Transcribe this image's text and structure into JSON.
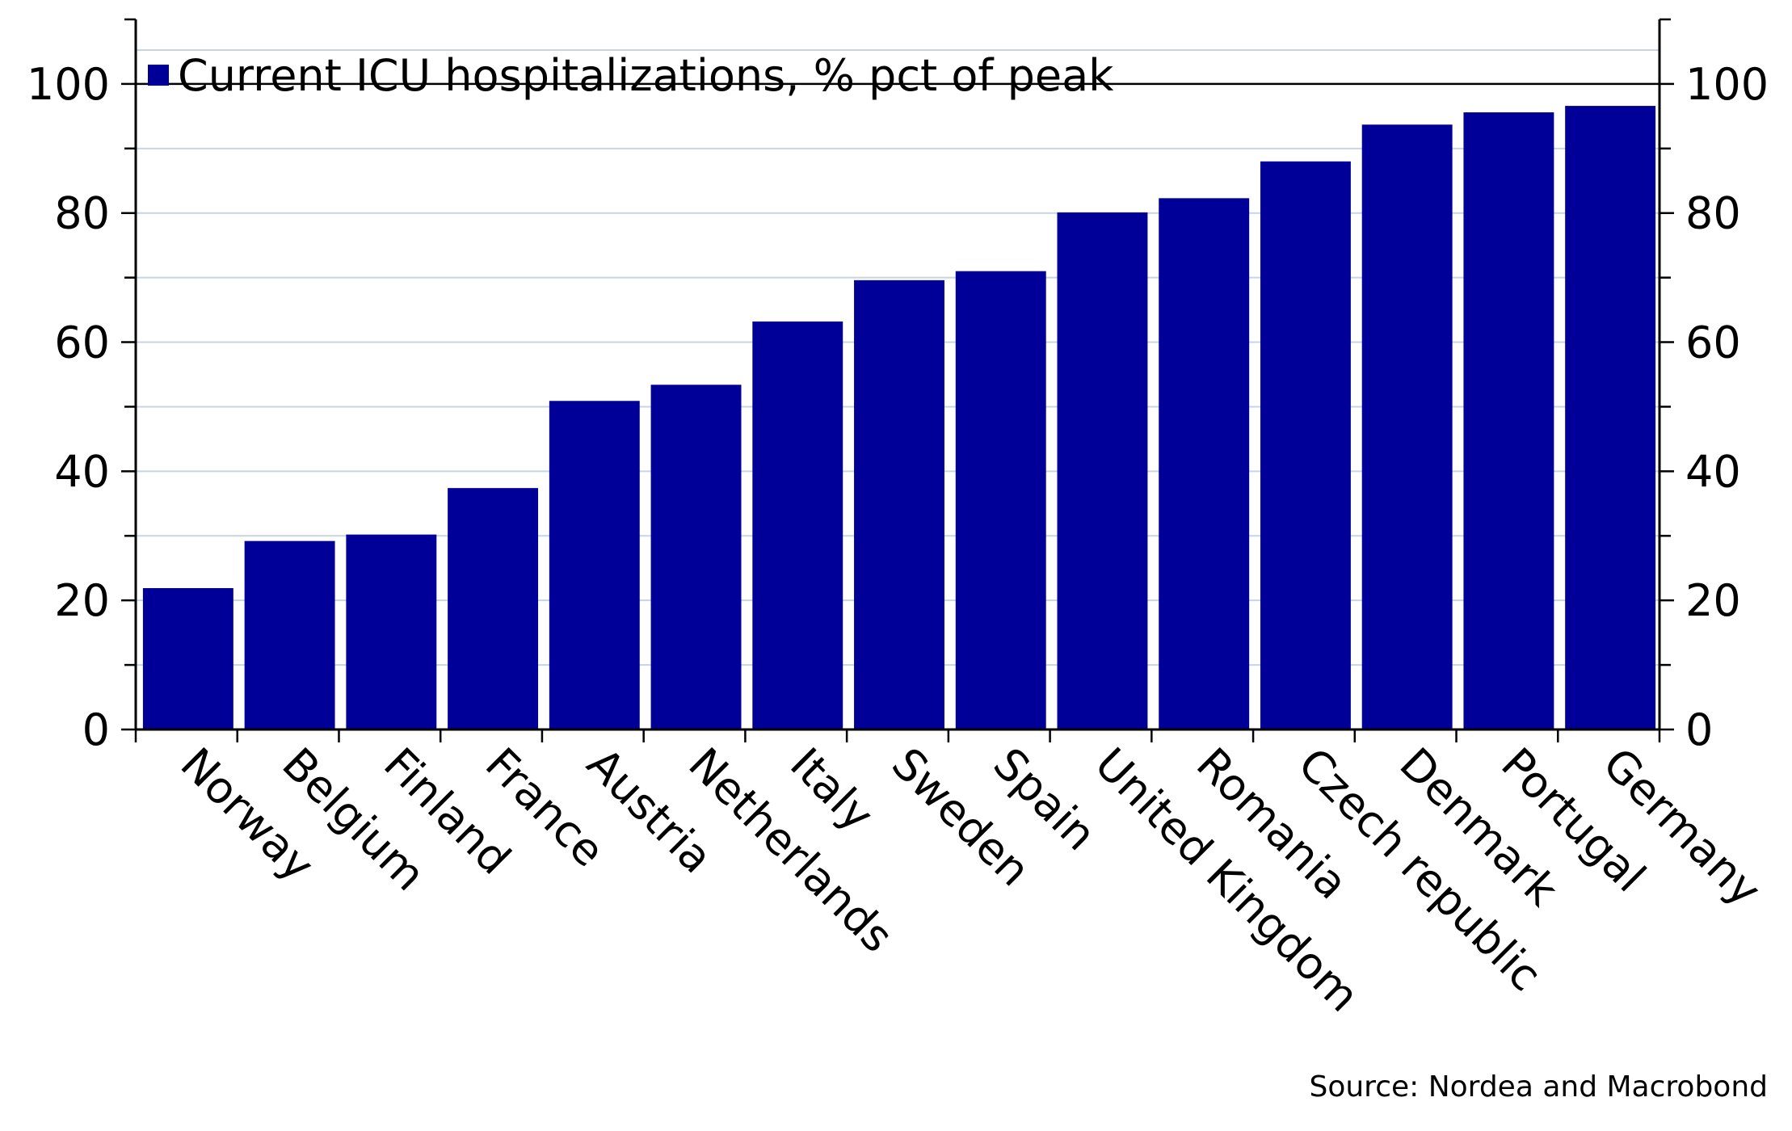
{
  "chart_data": {
    "type": "bar",
    "categories": [
      "Norway",
      "Belgium",
      "Finland",
      "France",
      "Austria",
      "Netherlands",
      "Italy",
      "Sweden",
      "Spain",
      "United Kingdom",
      "Romania",
      "Czech republic",
      "Denmark",
      "Portugal",
      "Germany"
    ],
    "series": [
      {
        "name": "Current ICU hospitalizations, % pct of peak",
        "color": "#000099",
        "values": [
          21.9,
          29.2,
          30.2,
          37.4,
          50.9,
          53.4,
          63.2,
          69.6,
          71.0,
          80.1,
          82.3,
          88.0,
          93.7,
          95.6,
          96.6
        ]
      }
    ],
    "ylim": [
      0,
      110
    ],
    "yticks": [
      0,
      20,
      40,
      60,
      80,
      100
    ],
    "ylabel": "",
    "xlabel": "",
    "title": "",
    "y_axis_right": true,
    "grid": true,
    "legend_position": "top-left"
  },
  "legend": {
    "label": "Current ICU hospitalizations, % pct of peak",
    "color": "#000099"
  },
  "source": "Source: Nordea and Macrobond",
  "colors": {
    "bar": "#000099",
    "grid": "#c8d4e0",
    "axis": "#000000"
  }
}
